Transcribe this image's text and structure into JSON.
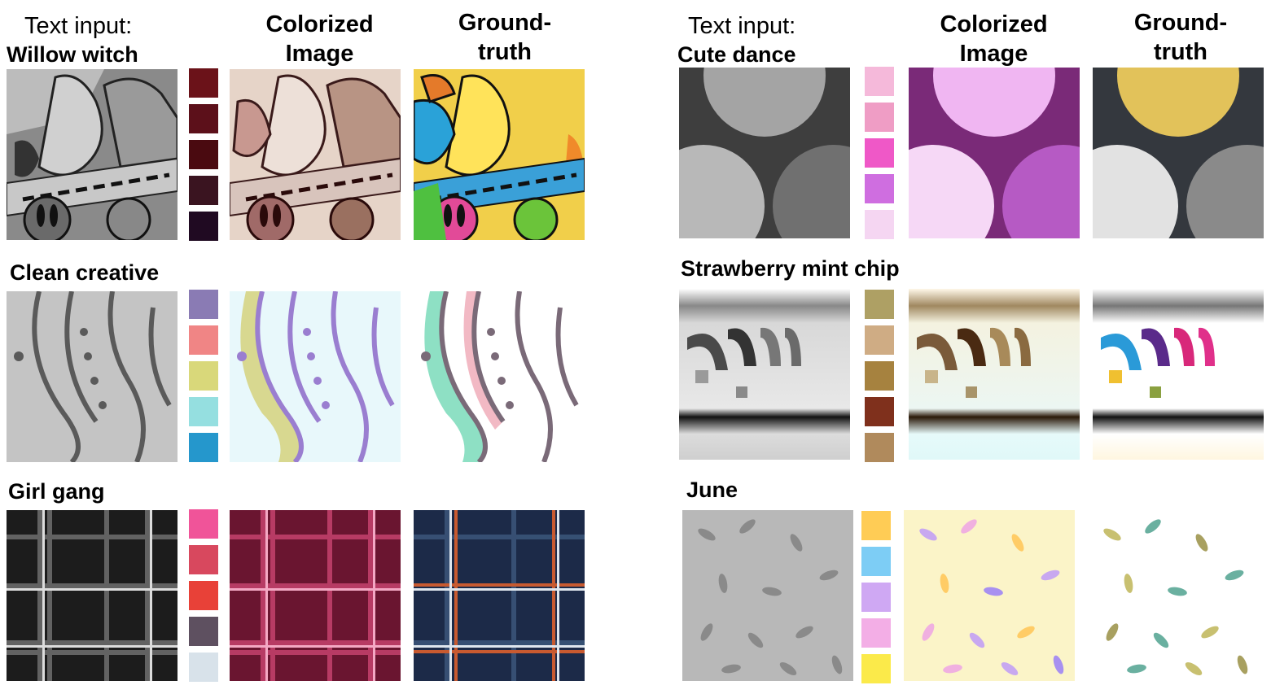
{
  "headers": {
    "text_input": "Text input:",
    "colorized": "Colorized\nImage",
    "ground_truth": "Ground-\ntruth"
  },
  "examples": [
    {
      "text": "Willow witch",
      "palette": [
        "#6b1219",
        "#5c101a",
        "#4a0a10",
        "#3a1420",
        "#200a22"
      ]
    },
    {
      "text": "Clean creative",
      "palette": [
        "#8a7bb4",
        "#f08585",
        "#d9d87a",
        "#95dfe0",
        "#2597cc"
      ]
    },
    {
      "text": "Girl gang",
      "palette": [
        "#f05499",
        "#d8485e",
        "#e84138",
        "#5e5060",
        "#d8e2ea"
      ]
    },
    {
      "text": "Cute dance",
      "palette": [
        "#f5b9da",
        "#ef9dc5",
        "#ef58c7",
        "#cf6ee0",
        "#f5d6f2"
      ]
    },
    {
      "text": "Strawberry mint chip",
      "palette": [
        "#aea064",
        "#cfac84",
        "#a6823f",
        "#7f301c",
        "#b08a5c"
      ]
    },
    {
      "text": "June",
      "palette": [
        "#ffcc55",
        "#7dcdf5",
        "#cfa8f3",
        "#f3aee6",
        "#fbea4a"
      ]
    }
  ]
}
